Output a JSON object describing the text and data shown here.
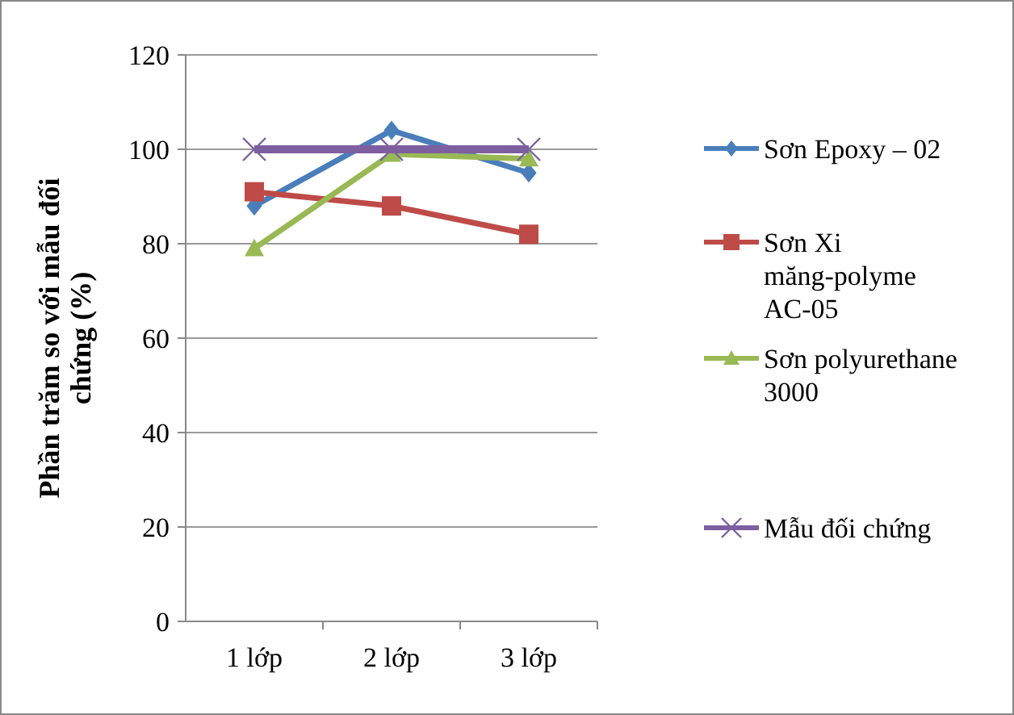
{
  "chart_data": {
    "type": "line",
    "ylabel": "Phần trăm so với mẫu đối chứng (%)",
    "categories": [
      "1 lớp",
      "2 lớp",
      "3 lớp"
    ],
    "series": [
      {
        "name": "Sơn Epoxy – 02",
        "color": "#4a7ebb",
        "values": [
          88,
          104,
          95
        ],
        "marker": "diamond"
      },
      {
        "name": "Sơn Xi măng-polyme AC-05",
        "color": "#be4b48",
        "values": [
          91,
          88,
          82
        ],
        "marker": "square"
      },
      {
        "name": "Sơn polyurethane 3000",
        "color": "#98b954",
        "values": [
          79,
          99,
          98
        ],
        "marker": "triangle"
      },
      {
        "name": "Mẫu đối chứng",
        "color": "#7d5fa0",
        "values": [
          100,
          100,
          100
        ],
        "marker": "cross"
      }
    ],
    "ylim": [
      0,
      120
    ],
    "yticks": [
      0,
      20,
      40,
      60,
      80,
      100,
      120
    ],
    "grid": "y",
    "legend": "right"
  }
}
